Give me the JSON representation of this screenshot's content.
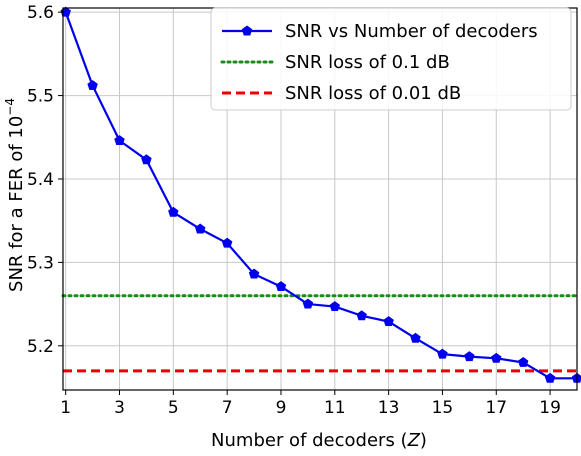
{
  "chart_data": {
    "type": "line",
    "xlabel": "Number of decoders (Z)",
    "xlabel_parts": {
      "prefix": "Number of decoders (",
      "var": "Z",
      "suffix": ")"
    },
    "ylabel": "SNR for a FER of 10^-4",
    "ylabel_parts": {
      "prefix": "SNR for a FER of 10",
      "sup": "−4"
    },
    "xlim": [
      0.9,
      20
    ],
    "ylim": [
      5.147,
      5.605
    ],
    "xticks": [
      1,
      3,
      5,
      7,
      9,
      11,
      13,
      15,
      17,
      19
    ],
    "xtick_labels": [
      "1",
      "3",
      "5",
      "7",
      "9",
      "11",
      "13",
      "15",
      "17",
      "19"
    ],
    "yticks": [
      5.2,
      5.3,
      5.4,
      5.5,
      5.6
    ],
    "ytick_labels": [
      "5.2",
      "5.3",
      "5.4",
      "5.5",
      "5.6"
    ],
    "grid": true,
    "legend_position": "top-right",
    "series": [
      {
        "name": "SNR vs Number of decoders",
        "color": "#0000ee",
        "style": "solid",
        "marker": "pentagon",
        "x": [
          1,
          2,
          3,
          4,
          5,
          6,
          7,
          8,
          9,
          10,
          11,
          12,
          13,
          14,
          15,
          16,
          17,
          18,
          19,
          20
        ],
        "y": [
          5.6,
          5.512,
          5.446,
          5.423,
          5.36,
          5.34,
          5.323,
          5.286,
          5.271,
          5.25,
          5.247,
          5.236,
          5.229,
          5.209,
          5.19,
          5.187,
          5.185,
          5.18,
          5.161,
          5.161
        ]
      },
      {
        "name": "SNR loss of 0.1 dB",
        "color": "#1a8c1a",
        "style": "dotted",
        "y_const": 5.26
      },
      {
        "name": "SNR loss of 0.01 dB",
        "color": "#ee0000",
        "style": "dashed",
        "y_const": 5.17
      }
    ]
  }
}
